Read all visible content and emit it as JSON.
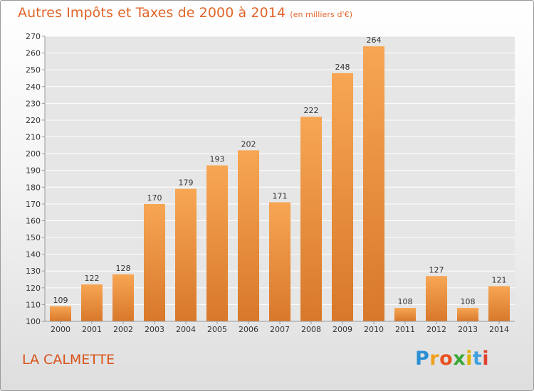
{
  "title": "Autres Impôts et Taxes de 2000 à 2014",
  "subtitle": "(en milliers d'€)",
  "location": "LA CALMETTE",
  "brand": {
    "letters": [
      "P",
      "r",
      "o",
      "x",
      "i",
      "t",
      "i"
    ],
    "colors": [
      "#2a8fd4",
      "#f0a020",
      "#e85020",
      "#3aa838",
      "#e0b000",
      "#40a0e0",
      "#e04030"
    ]
  },
  "colors": {
    "bar_top": "#f7a654",
    "bar_bottom": "#d8782a",
    "accent": "#e0662a",
    "grid": "#ffffff"
  },
  "chart_data": {
    "type": "bar",
    "categories": [
      "2000",
      "2001",
      "2002",
      "2003",
      "2004",
      "2005",
      "2006",
      "2007",
      "2008",
      "2009",
      "2010",
      "2011",
      "2012",
      "2013",
      "2014"
    ],
    "values": [
      109,
      122,
      128,
      170,
      179,
      193,
      202,
      171,
      222,
      248,
      264,
      108,
      127,
      108,
      121
    ],
    "xlabel": "",
    "ylabel": "",
    "ylim": [
      100,
      270
    ],
    "yticks": [
      100,
      110,
      120,
      130,
      140,
      150,
      160,
      170,
      180,
      190,
      200,
      210,
      220,
      230,
      240,
      250,
      260,
      270
    ],
    "grid": true,
    "legend": "none"
  }
}
